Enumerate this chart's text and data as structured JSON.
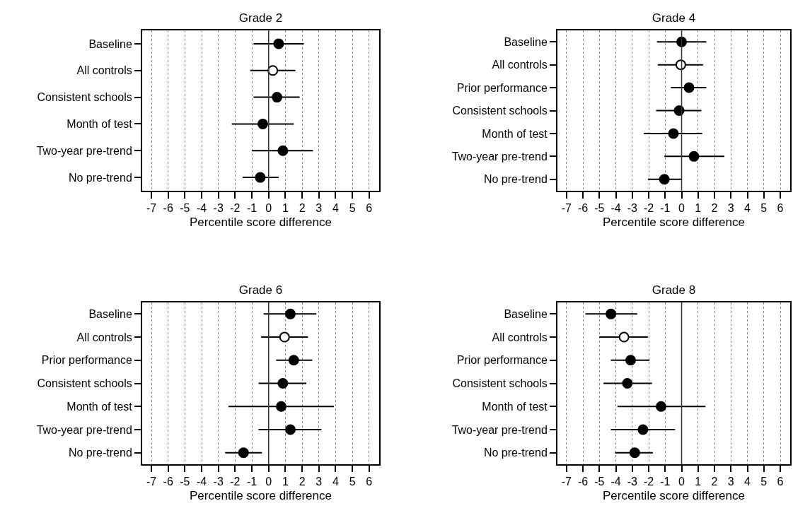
{
  "chart_data": [
    {
      "type": "scatter",
      "orientation": "horizontal",
      "title": "Grade 2",
      "xlabel": "Percentile score difference",
      "categories": [
        "Baseline",
        "All controls",
        "Consistent schools",
        "Month of test",
        "Two-year pre-trend",
        "No pre-trend"
      ],
      "values": [
        0.6,
        0.25,
        0.5,
        -0.35,
        0.85,
        -0.5
      ],
      "errors": [
        [
          -0.9,
          2.1
        ],
        [
          -1.1,
          1.6
        ],
        [
          -0.9,
          1.85
        ],
        [
          -2.2,
          1.5
        ],
        [
          -1,
          2.65
        ],
        [
          -1.55,
          0.6
        ]
      ],
      "colors": [
        "#000000",
        "#ffffff",
        "#000000",
        "#000000",
        "#000000",
        "#000000"
      ],
      "xlim": [
        -7.55,
        6.6
      ],
      "xticks": [
        -7,
        -6,
        -5,
        -4,
        -3,
        -2,
        -1,
        0,
        1,
        2,
        3,
        4,
        5,
        6
      ],
      "ref_lines": [
        {
          "axis": "x",
          "value": 0
        }
      ],
      "grid": "x",
      "marker": "circle"
    },
    {
      "type": "scatter",
      "orientation": "horizontal",
      "title": "Grade 4",
      "xlabel": "Percentile score difference",
      "categories": [
        "Baseline",
        "All controls",
        "Prior performance",
        "Consistent schools",
        "Month of test",
        "Two-year pre-trend",
        "No pre-trend"
      ],
      "values": [
        0,
        -0.05,
        0.45,
        -0.15,
        -0.5,
        0.75,
        -1.05
      ],
      "errors": [
        [
          -1.5,
          1.5
        ],
        [
          -1.45,
          1.3
        ],
        [
          -0.65,
          1.5
        ],
        [
          -1.55,
          1.2
        ],
        [
          -2.3,
          1.25
        ],
        [
          -1.05,
          2.6
        ],
        [
          -2.05,
          0
        ]
      ],
      "colors": [
        "#000000",
        "#ffffff",
        "#000000",
        "#000000",
        "#000000",
        "#000000",
        "#000000"
      ],
      "xlim": [
        -7.55,
        6.6
      ],
      "xticks": [
        -7,
        -6,
        -5,
        -4,
        -3,
        -2,
        -1,
        0,
        1,
        2,
        3,
        4,
        5,
        6
      ],
      "ref_lines": [
        {
          "axis": "x",
          "value": 0
        }
      ],
      "grid": "x",
      "marker": "circle"
    },
    {
      "type": "scatter",
      "orientation": "horizontal",
      "title": "Grade 6",
      "xlabel": "Percentile score difference",
      "categories": [
        "Baseline",
        "All controls",
        "Prior performance",
        "Consistent schools",
        "Month of test",
        "Two-year pre-trend",
        "No pre-trend"
      ],
      "values": [
        1.3,
        0.95,
        1.5,
        0.85,
        0.75,
        1.3,
        -1.5
      ],
      "errors": [
        [
          -0.3,
          2.85
        ],
        [
          -0.45,
          2.35
        ],
        [
          0.45,
          2.6
        ],
        [
          -0.6,
          2.25
        ],
        [
          -2.4,
          3.9
        ],
        [
          -0.6,
          3.15
        ],
        [
          -2.6,
          -0.4
        ]
      ],
      "colors": [
        "#000000",
        "#ffffff",
        "#000000",
        "#000000",
        "#000000",
        "#000000",
        "#000000"
      ],
      "xlim": [
        -7.55,
        6.6
      ],
      "xticks": [
        -7,
        -6,
        -5,
        -4,
        -3,
        -2,
        -1,
        0,
        1,
        2,
        3,
        4,
        5,
        6
      ],
      "ref_lines": [
        {
          "axis": "x",
          "value": 0
        }
      ],
      "grid": "x",
      "marker": "circle"
    },
    {
      "type": "scatter",
      "orientation": "horizontal",
      "title": "Grade 8",
      "xlabel": "Percentile score difference",
      "categories": [
        "Baseline",
        "All controls",
        "Prior performance",
        "Consistent schools",
        "Month of test",
        "Two-year pre-trend",
        "No pre-trend"
      ],
      "values": [
        -4.3,
        -3.5,
        -3.1,
        -3.3,
        -1.25,
        -2.35,
        -2.85
      ],
      "errors": [
        [
          -5.85,
          -2.7
        ],
        [
          -5,
          -2.05
        ],
        [
          -4.3,
          -1.95
        ],
        [
          -4.75,
          -1.8
        ],
        [
          -3.9,
          1.45
        ],
        [
          -4.3,
          -0.4
        ],
        [
          -4.05,
          -1.75
        ]
      ],
      "colors": [
        "#000000",
        "#ffffff",
        "#000000",
        "#000000",
        "#000000",
        "#000000",
        "#000000"
      ],
      "xlim": [
        -7.55,
        6.6
      ],
      "xticks": [
        -7,
        -6,
        -5,
        -4,
        -3,
        -2,
        -1,
        0,
        1,
        2,
        3,
        4,
        5,
        6
      ],
      "ref_lines": [
        {
          "axis": "x",
          "value": 0
        }
      ],
      "grid": "x",
      "marker": "circle"
    }
  ]
}
